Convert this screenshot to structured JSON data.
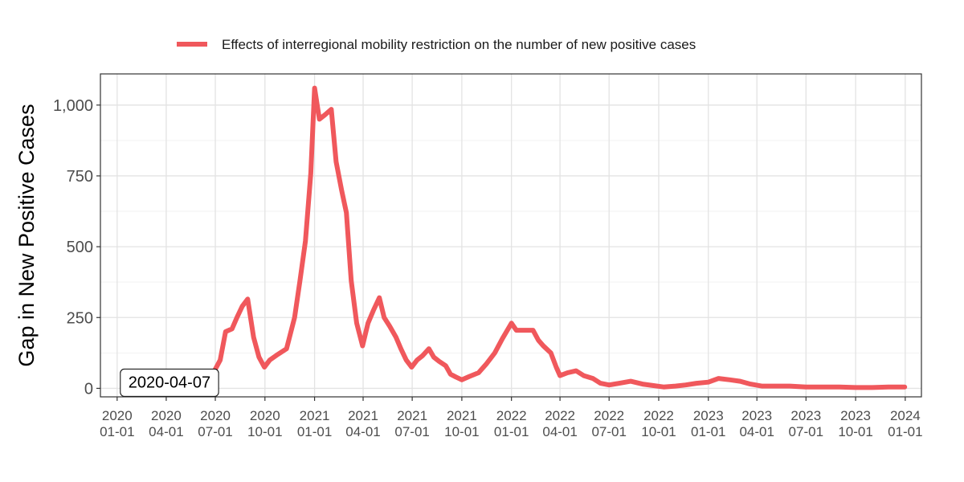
{
  "chart_data": {
    "type": "line",
    "title": "",
    "xlabel": "",
    "ylabel": "Gap in New Positive Cases",
    "ylim": [
      -30,
      1110
    ],
    "xlim": [
      "2019-12-01",
      "2024-01-31"
    ],
    "grid": true,
    "legend_position": "top",
    "y_ticks": [
      0,
      250,
      500,
      750,
      1000
    ],
    "y_tick_labels": [
      "0",
      "250",
      "500",
      "750",
      "1,000"
    ],
    "x_ticks": [
      "2020-01-01",
      "2020-04-01",
      "2020-07-01",
      "2020-10-01",
      "2021-01-01",
      "2021-04-01",
      "2021-07-01",
      "2021-10-01",
      "2022-01-01",
      "2022-04-01",
      "2022-07-01",
      "2022-10-01",
      "2023-01-01",
      "2023-04-01",
      "2023-07-01",
      "2023-10-01",
      "2024-01-01"
    ],
    "x_tick_labels": [
      [
        "2020",
        "01-01"
      ],
      [
        "2020",
        "04-01"
      ],
      [
        "2020",
        "07-01"
      ],
      [
        "2020",
        "10-01"
      ],
      [
        "2021",
        "01-01"
      ],
      [
        "2021",
        "04-01"
      ],
      [
        "2021",
        "07-01"
      ],
      [
        "2021",
        "10-01"
      ],
      [
        "2022",
        "01-01"
      ],
      [
        "2022",
        "04-01"
      ],
      [
        "2022",
        "07-01"
      ],
      [
        "2022",
        "10-01"
      ],
      [
        "2023",
        "01-01"
      ],
      [
        "2023",
        "04-01"
      ],
      [
        "2023",
        "07-01"
      ],
      [
        "2023",
        "10-01"
      ],
      [
        "2024",
        "01-01"
      ]
    ],
    "series": [
      {
        "name": "Effects of interregional mobility restriction on the number of new positive cases",
        "color": "#f0585c",
        "x": [
          "2020-04-01",
          "2020-04-20",
          "2020-05-10",
          "2020-06-01",
          "2020-06-20",
          "2020-07-10",
          "2020-07-20",
          "2020-08-01",
          "2020-08-10",
          "2020-08-20",
          "2020-08-30",
          "2020-09-10",
          "2020-09-20",
          "2020-09-30",
          "2020-10-10",
          "2020-10-25",
          "2020-11-10",
          "2020-11-25",
          "2020-12-05",
          "2020-12-15",
          "2020-12-25",
          "2021-01-01",
          "2021-01-10",
          "2021-01-20",
          "2021-02-01",
          "2021-02-10",
          "2021-02-20",
          "2021-03-01",
          "2021-03-10",
          "2021-03-20",
          "2021-03-31",
          "2021-04-10",
          "2021-04-20",
          "2021-05-01",
          "2021-05-10",
          "2021-05-20",
          "2021-06-01",
          "2021-06-10",
          "2021-06-20",
          "2021-06-30",
          "2021-07-10",
          "2021-07-20",
          "2021-08-01",
          "2021-08-10",
          "2021-08-20",
          "2021-09-01",
          "2021-09-10",
          "2021-09-20",
          "2021-10-01",
          "2021-10-15",
          "2021-11-01",
          "2021-11-15",
          "2021-12-01",
          "2021-12-15",
          "2022-01-01",
          "2022-01-10",
          "2022-01-25",
          "2022-02-10",
          "2022-02-20",
          "2022-03-01",
          "2022-03-15",
          "2022-03-25",
          "2022-04-01",
          "2022-04-15",
          "2022-05-01",
          "2022-05-15",
          "2022-06-01",
          "2022-06-15",
          "2022-07-01",
          "2022-07-20",
          "2022-08-10",
          "2022-09-01",
          "2022-09-20",
          "2022-10-10",
          "2022-11-01",
          "2022-11-20",
          "2022-12-10",
          "2023-01-01",
          "2023-01-20",
          "2023-02-10",
          "2023-03-01",
          "2023-03-20",
          "2023-04-10",
          "2023-05-01",
          "2023-06-01",
          "2023-07-01",
          "2023-08-01",
          "2023-09-01",
          "2023-10-01",
          "2023-11-01",
          "2023-12-01",
          "2023-12-31"
        ],
        "y": [
          -20,
          -18,
          5,
          20,
          28,
          100,
          200,
          210,
          250,
          290,
          315,
          180,
          110,
          75,
          100,
          120,
          140,
          250,
          380,
          520,
          760,
          1060,
          950,
          965,
          985,
          800,
          700,
          620,
          380,
          230,
          150,
          230,
          275,
          320,
          250,
          220,
          180,
          140,
          100,
          75,
          100,
          115,
          140,
          110,
          95,
          80,
          50,
          40,
          30,
          42,
          55,
          85,
          125,
          175,
          230,
          205,
          205,
          205,
          170,
          150,
          125,
          75,
          45,
          55,
          62,
          45,
          35,
          18,
          12,
          18,
          25,
          15,
          10,
          5,
          8,
          12,
          18,
          22,
          35,
          30,
          25,
          15,
          8,
          8,
          8,
          5,
          5,
          5,
          3,
          3,
          5,
          5
        ]
      }
    ],
    "annotations": [
      {
        "text": "2020-04-07",
        "x": "2020-04-07",
        "y": 0
      }
    ]
  }
}
